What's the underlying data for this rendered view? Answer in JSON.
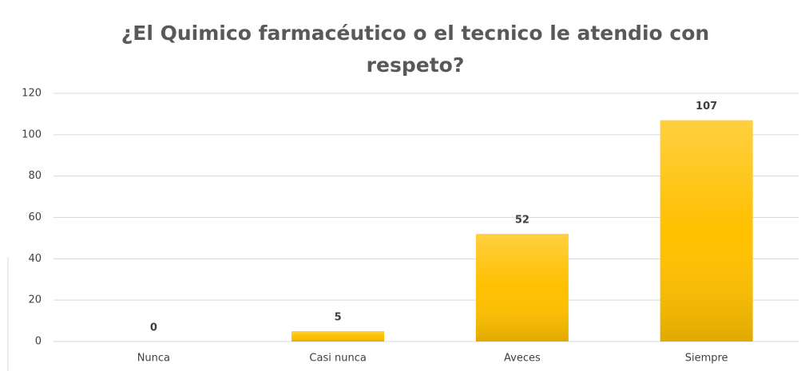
{
  "chart_data": {
    "type": "bar",
    "title": "¿El Quimico farmacéutico o el tecnico le atendio con respeto?",
    "categories": [
      "Nunca",
      "Casi nunca",
      "Aveces",
      "Siempre"
    ],
    "values": [
      0,
      5,
      52,
      107
    ],
    "color": "#ffc000",
    "ylim": [
      0,
      120
    ],
    "yticks": [
      0,
      20,
      40,
      60,
      80,
      100,
      120
    ],
    "grid": true
  }
}
